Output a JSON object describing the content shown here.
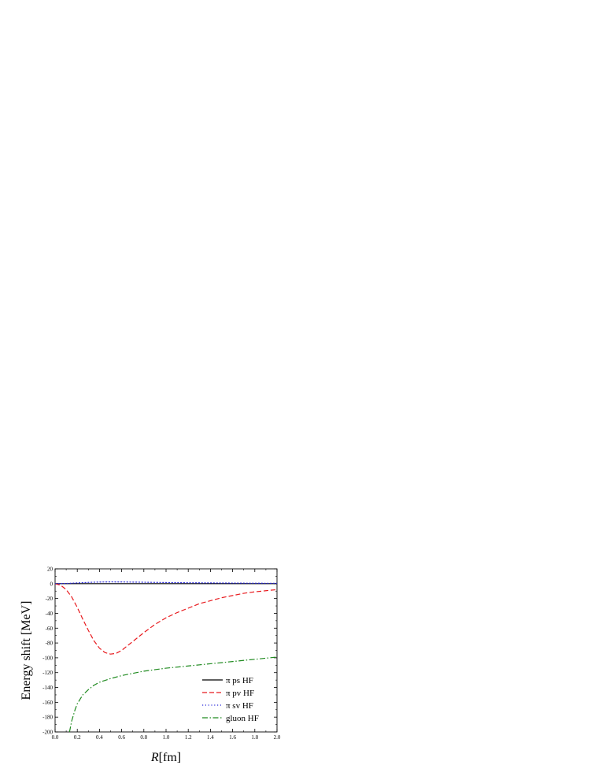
{
  "chart_data": {
    "type": "line",
    "xlabel_italic": "R",
    "xlabel_unit": "[fm]",
    "ylabel": "Energy shift [MeV]",
    "xlim": [
      0.0,
      2.0
    ],
    "ylim": [
      -200,
      20
    ],
    "x_ticks": [
      "0.0",
      "0.2",
      "0.4",
      "0.6",
      "0.8",
      "1.0",
      "1.2",
      "1.4",
      "1.6",
      "1.8",
      "2.0"
    ],
    "y_ticks": [
      "20",
      "0",
      "-20",
      "-40",
      "-60",
      "-80",
      "-100",
      "-120",
      "-140",
      "-160",
      "-180",
      "-200"
    ],
    "grid": false,
    "legend_position": "bottom-right",
    "series": [
      {
        "name": "π ps HF",
        "color": "#000000",
        "dash": "solid",
        "x": [
          0.0,
          0.2,
          0.4,
          0.6,
          0.8,
          1.0,
          1.2,
          1.4,
          1.6,
          1.8,
          2.0
        ],
        "y": [
          0,
          0,
          0,
          0,
          0,
          0,
          0,
          0,
          0,
          0,
          0
        ]
      },
      {
        "name": "π pv HF",
        "color": "#e8191d",
        "dash": "dashed",
        "x": [
          0.0,
          0.05,
          0.1,
          0.15,
          0.2,
          0.25,
          0.3,
          0.35,
          0.4,
          0.45,
          0.5,
          0.55,
          0.6,
          0.65,
          0.7,
          0.8,
          0.9,
          1.0,
          1.1,
          1.2,
          1.3,
          1.4,
          1.5,
          1.6,
          1.7,
          1.8,
          1.9,
          2.0
        ],
        "y": [
          0,
          -2,
          -8,
          -18,
          -32,
          -48,
          -63,
          -77,
          -87,
          -93,
          -95,
          -94,
          -90,
          -84,
          -78,
          -66,
          -55,
          -46,
          -39,
          -33,
          -27,
          -23,
          -19,
          -16,
          -13,
          -11,
          -9.5,
          -8
        ]
      },
      {
        "name": "π sv HF",
        "color": "#2b2bd9",
        "dash": "dotted",
        "x": [
          0.0,
          0.1,
          0.2,
          0.3,
          0.4,
          0.5,
          0.6,
          0.7,
          0.8,
          1.0,
          1.2,
          1.4,
          1.6,
          1.8,
          2.0
        ],
        "y": [
          0,
          0.3,
          1.0,
          1.7,
          2.2,
          2.4,
          2.3,
          2.1,
          1.9,
          1.5,
          1.2,
          1.0,
          0.8,
          0.6,
          0.5
        ]
      },
      {
        "name": "gluon HF",
        "color": "#1f8a1f",
        "dash": "dashdot",
        "x": [
          0.13,
          0.15,
          0.18,
          0.2,
          0.25,
          0.3,
          0.35,
          0.4,
          0.5,
          0.6,
          0.7,
          0.8,
          0.9,
          1.0,
          1.2,
          1.4,
          1.6,
          1.8,
          2.0
        ],
        "y": [
          -200,
          -185,
          -170,
          -162,
          -150,
          -143,
          -137,
          -133,
          -128,
          -124,
          -121,
          -118,
          -116,
          -114,
          -111,
          -108,
          -105,
          -102,
          -99
        ]
      }
    ]
  }
}
